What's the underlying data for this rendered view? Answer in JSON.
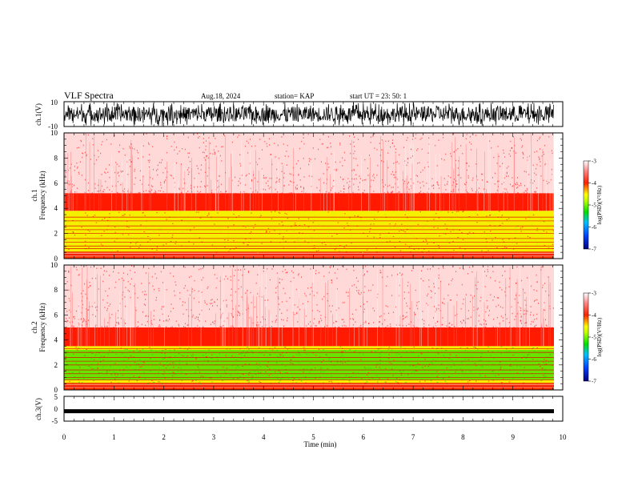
{
  "header": {
    "title": "VLF Spectra",
    "date": "Aug.18, 2024",
    "station": "station= KAP",
    "start": "start  UT  =   23: 50: 1"
  },
  "chart_data": [
    {
      "type": "line",
      "panel": "ch1-waveform",
      "ylabel": "ch.1(V)",
      "ylim": [
        -10,
        10
      ],
      "yticks": [
        "10",
        "-10"
      ],
      "xlim": [
        0,
        10
      ],
      "description_values": "dense oscillating voltage trace, mostly between -10 and 8 V",
      "color": "#000000"
    },
    {
      "type": "heatmap",
      "panel": "ch1-spectrogram",
      "ylabel": "Frequency  (kHz)",
      "channel": "ch.1",
      "ylim": [
        0,
        10
      ],
      "yticks": [
        "0",
        "2",
        "4",
        "6",
        "8",
        "10"
      ],
      "xlim": [
        0,
        10
      ],
      "colorbar": {
        "label": "log(PSD)(V²/Hz)",
        "range": [
          -7,
          -3
        ],
        "ticks": [
          "-3",
          "-4",
          "-5",
          "-6",
          "-7"
        ]
      },
      "bands_khz": {
        "yellow_green": [
          0.5,
          3.8
        ],
        "red": [
          3.8,
          5.2
        ],
        "pink_red": [
          5.2,
          10
        ]
      }
    },
    {
      "type": "heatmap",
      "panel": "ch2-spectrogram",
      "ylabel": "Frequency  (kHz)",
      "channel": "ch.2",
      "ylim": [
        0,
        10
      ],
      "yticks": [
        "0",
        "2",
        "4",
        "6",
        "8",
        "10"
      ],
      "xlim": [
        0,
        10
      ],
      "colorbar": {
        "label": "log(PSD)(V²/Hz)",
        "range": [
          -7,
          -3
        ],
        "ticks": [
          "-3",
          "-4",
          "-5",
          "-6",
          "-7"
        ]
      },
      "bands_khz": {
        "yellow_green": [
          0.5,
          3.5
        ],
        "green": [
          0.8,
          3.2
        ],
        "red": [
          3.5,
          5.0
        ],
        "pink_red": [
          5.0,
          10
        ]
      }
    },
    {
      "type": "line",
      "panel": "ch3-waveform",
      "ylabel": "ch.3(V)",
      "ylim": [
        -5,
        5
      ],
      "yticks": [
        "5",
        "0",
        "-5"
      ],
      "xlim": [
        0,
        10
      ],
      "level": -1,
      "color": "#000000"
    }
  ],
  "xaxis": {
    "label": "Time  (min)",
    "ticks": [
      "0",
      "1",
      "2",
      "3",
      "4",
      "5",
      "6",
      "7",
      "8",
      "9",
      "10"
    ]
  },
  "colors": {
    "dark_blue": "#000080",
    "blue": "#0050ff",
    "green": "#00e000",
    "yellow": "#ffff00",
    "red": "#ff0000",
    "pink": "#ffe0e0"
  }
}
